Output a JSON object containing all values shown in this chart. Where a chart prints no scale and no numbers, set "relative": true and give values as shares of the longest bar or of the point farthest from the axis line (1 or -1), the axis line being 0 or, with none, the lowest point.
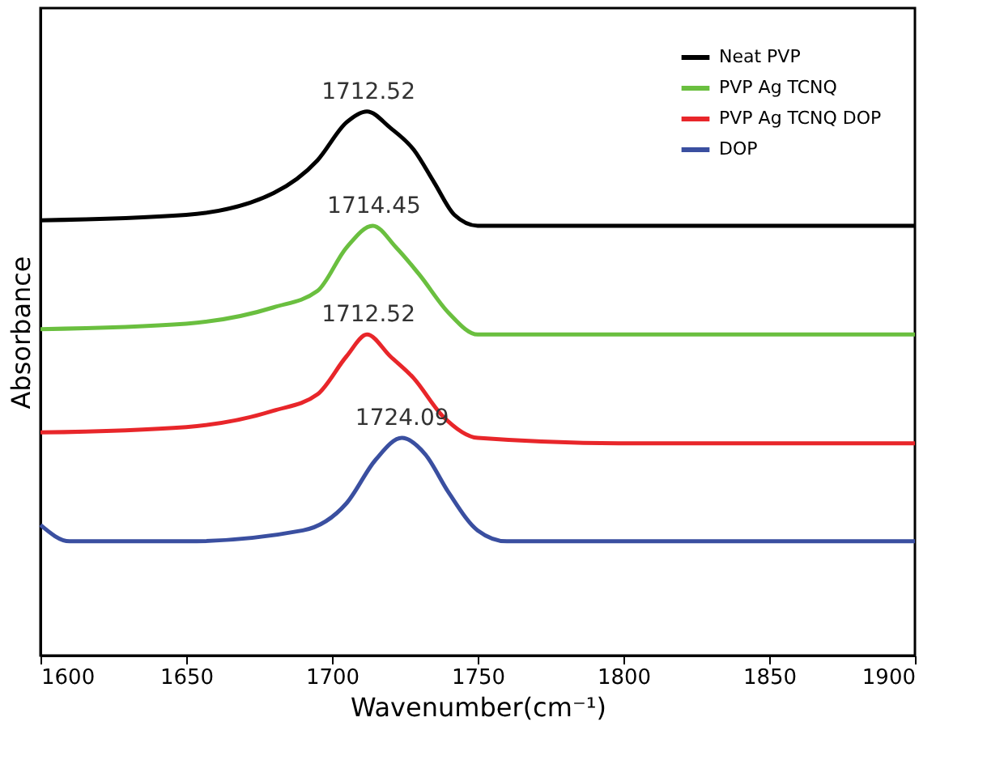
{
  "chart_data": {
    "type": "line",
    "relative": true,
    "xlabel": "Wavenumber(cm⁻¹)",
    "ylabel": "Absorbance",
    "xlim": [
      1600,
      1900
    ],
    "xticks": [
      1600,
      1650,
      1700,
      1750,
      1800,
      1850,
      1900
    ],
    "grid": false,
    "legend": "top right",
    "line_style": "solid",
    "marker": "none",
    "series": [
      {
        "name": "Neat PVP",
        "color": "#000000",
        "x": [
          1600,
          1650,
          1680,
          1695,
          1705,
          1712,
          1720,
          1728,
          1735,
          1742,
          1750,
          1800,
          1900
        ],
        "values": [
          0.8,
          0.81,
          0.85,
          0.91,
          0.98,
          1.0,
          0.97,
          0.93,
          0.87,
          0.81,
          0.79,
          0.79,
          0.79
        ]
      },
      {
        "name": "PVP Ag TCNQ",
        "color": "#6abf3f",
        "x": [
          1600,
          1650,
          1680,
          1695,
          1705,
          1714,
          1722,
          1730,
          1740,
          1750,
          1800,
          1900
        ],
        "values": [
          0.6,
          0.61,
          0.64,
          0.67,
          0.75,
          0.79,
          0.75,
          0.7,
          0.63,
          0.59,
          0.59,
          0.59
        ]
      },
      {
        "name": "PVP Ag TCNQ DOP",
        "color": "#e8262a",
        "x": [
          1600,
          1650,
          1680,
          1695,
          1705,
          1712,
          1720,
          1728,
          1738,
          1750,
          1800,
          1900
        ],
        "values": [
          0.41,
          0.42,
          0.45,
          0.48,
          0.55,
          0.59,
          0.55,
          0.51,
          0.44,
          0.4,
          0.39,
          0.39
        ]
      },
      {
        "name": "DOP",
        "color": "#3a4fa0",
        "x": [
          1600,
          1610,
          1650,
          1690,
          1705,
          1715,
          1724,
          1732,
          1740,
          1750,
          1760,
          1900
        ],
        "values": [
          0.24,
          0.21,
          0.21,
          0.23,
          0.28,
          0.36,
          0.4,
          0.37,
          0.3,
          0.23,
          0.21,
          0.21
        ]
      }
    ],
    "annotations": [
      {
        "text": "1712.52",
        "x": 1712.52,
        "y": 1.0
      },
      {
        "text": "1714.45",
        "x": 1714.45,
        "y": 0.79
      },
      {
        "text": "1712.52",
        "x": 1712.52,
        "y": 0.59
      },
      {
        "text": "1724.09",
        "x": 1724.09,
        "y": 0.4
      }
    ]
  }
}
